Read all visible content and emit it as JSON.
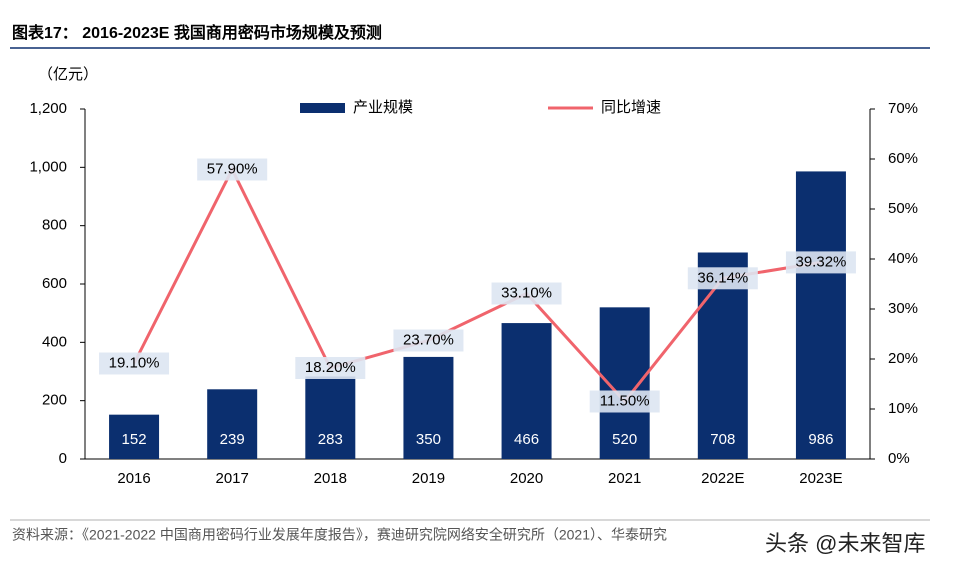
{
  "chart_data": {
    "type": "bar-line",
    "title": "图表17： 2016-2023E 我国商用密码市场规模及预测",
    "y_label": "（亿元）",
    "categories": [
      "2016",
      "2017",
      "2018",
      "2019",
      "2020",
      "2021",
      "2022E",
      "2023E"
    ],
    "series": [
      {
        "name": "产业规模",
        "type": "bar",
        "color": "#0b2f6f",
        "values": [
          152,
          239,
          283,
          350,
          466,
          520,
          708,
          986
        ]
      },
      {
        "name": "同比增速",
        "type": "line",
        "axis": "y2",
        "color": "#f0646c",
        "values": [
          19.1,
          57.9,
          18.2,
          23.7,
          33.1,
          11.5,
          36.14,
          39.32
        ],
        "value_labels": [
          "19.10%",
          "57.90%",
          "18.20%",
          "23.70%",
          "33.10%",
          "11.50%",
          "36.14%",
          "39.32%"
        ]
      }
    ],
    "ylim": [
      0,
      1200
    ],
    "yticks": [
      0,
      200,
      400,
      600,
      800,
      {
        "value": 1000,
        "label": "1,000"
      },
      {
        "value": 1200,
        "label": "1,200"
      }
    ],
    "y2lim": [
      0,
      70
    ],
    "y2ticks": [
      {
        "value": 0,
        "label": "0%"
      },
      {
        "value": 10,
        "label": "10%"
      },
      {
        "value": 20,
        "label": "20%"
      },
      {
        "value": 30,
        "label": "30%"
      },
      {
        "value": 40,
        "label": "40%"
      },
      {
        "value": 50,
        "label": "50%"
      },
      {
        "value": 60,
        "label": "60%"
      },
      {
        "value": 70,
        "label": "70%"
      }
    ],
    "legend": "top",
    "source": "资料来源：《2021-2022 中国商用密码行业发展年度报告》，赛迪研究院网络安全研究所（2021）、华泰研究",
    "watermark": "头条 @未来智库"
  }
}
